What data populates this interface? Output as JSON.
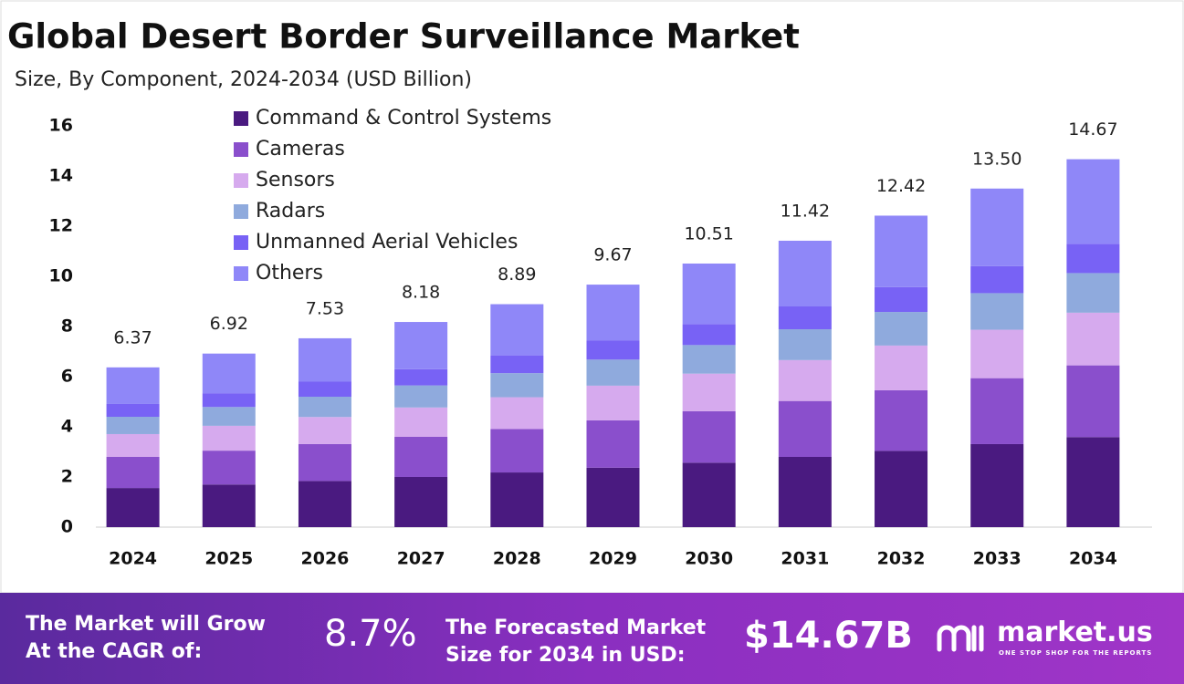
{
  "chart_data": {
    "type": "stacked-bar",
    "title": "Global Desert Border Surveillance Market",
    "subtitle": "Size, By Component, 2024-2034 (USD Billion)",
    "categories": [
      "2024",
      "2025",
      "2026",
      "2027",
      "2028",
      "2029",
      "2030",
      "2031",
      "2032",
      "2033",
      "2034"
    ],
    "series": [
      {
        "name": "Command & Control Systems",
        "color": "#4a1a80",
        "values": [
          1.56,
          1.7,
          1.84,
          2.0,
          2.18,
          2.37,
          2.57,
          2.8,
          3.04,
          3.31,
          3.59
        ]
      },
      {
        "name": "Cameras",
        "color": "#8a4fcc",
        "values": [
          1.24,
          1.35,
          1.47,
          1.6,
          1.73,
          1.89,
          2.05,
          2.23,
          2.42,
          2.63,
          2.86
        ]
      },
      {
        "name": "Sensors",
        "color": "#d6aaee",
        "values": [
          0.91,
          0.99,
          1.08,
          1.17,
          1.27,
          1.38,
          1.5,
          1.63,
          1.78,
          1.93,
          2.1
        ]
      },
      {
        "name": "Radars",
        "color": "#8faadd",
        "values": [
          0.69,
          0.75,
          0.81,
          0.88,
          0.96,
          1.04,
          1.14,
          1.23,
          1.34,
          1.46,
          1.58
        ]
      },
      {
        "name": "Unmanned Aerial Vehicles",
        "color": "#7862f5",
        "values": [
          0.51,
          0.55,
          0.6,
          0.65,
          0.71,
          0.77,
          0.84,
          0.91,
          0.99,
          1.08,
          1.17
        ]
      },
      {
        "name": "Others",
        "color": "#8f87f8",
        "values": [
          1.46,
          1.58,
          1.73,
          1.88,
          2.04,
          2.22,
          2.41,
          2.62,
          2.85,
          3.09,
          3.37
        ]
      }
    ],
    "totals": {
      "values": [
        6.37,
        6.92,
        7.53,
        8.18,
        8.89,
        9.67,
        10.51,
        11.42,
        12.42,
        13.5,
        14.67
      ],
      "value_labels": [
        "6.37",
        "6.92",
        "7.53",
        "8.18",
        "8.89",
        "9.67",
        "10.51",
        "11.42",
        "12.42",
        "13.50",
        "14.67"
      ]
    },
    "ylim": [
      0,
      16
    ],
    "yticks": [
      0,
      2,
      4,
      6,
      8,
      10,
      12,
      14,
      16
    ],
    "grid": false,
    "legend": "top-left"
  },
  "footer": {
    "cagr_label": [
      "The Market will Grow",
      "At the CAGR of:"
    ],
    "cagr": "8.7%",
    "forecast_label": [
      "The Forecasted Market",
      "Size for 2034 in USD:"
    ],
    "forecast": "$14.67B",
    "brand": "market.us",
    "tagline": "ONE STOP SHOP FOR THE REPORTS"
  }
}
